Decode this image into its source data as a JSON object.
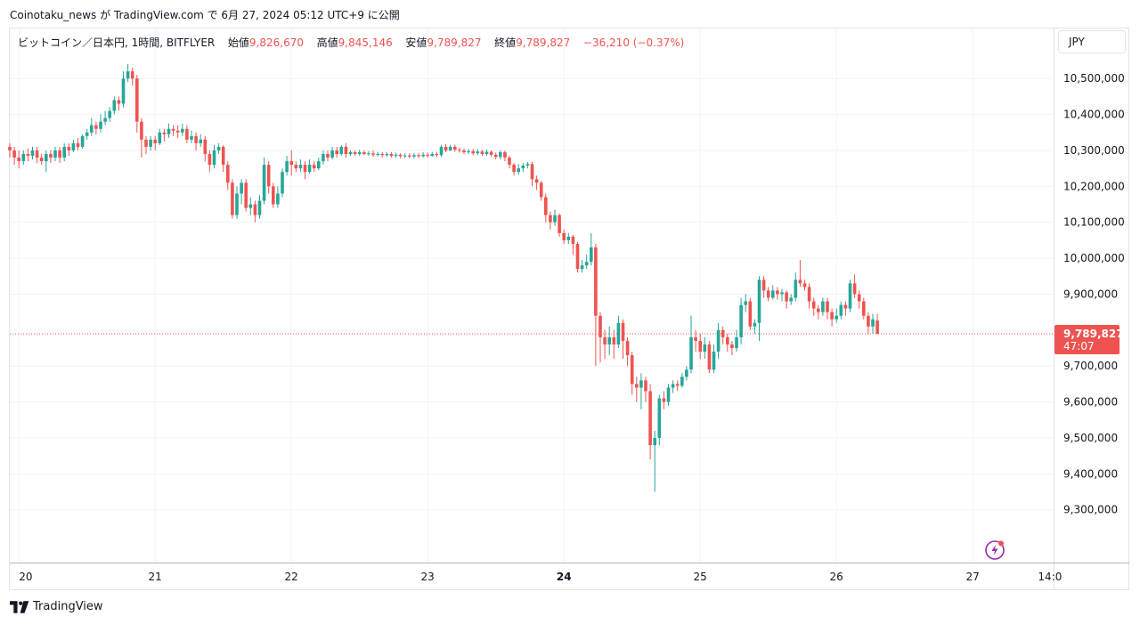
{
  "caption": "Coinotaku_news が TradingView.com で 6月 27, 2024 05:12 UTC+9 に公開",
  "legend": {
    "symbol": "ビットコイン／日本円, 1時間, BITFLYER",
    "open_label": "始値",
    "open": "9,826,670",
    "high_label": "高値",
    "high": "9,845,146",
    "low_label": "安値",
    "low": "9,789,827",
    "close_label": "終値",
    "close": "9,789,827",
    "change": "−36,210 (−0.37%)"
  },
  "currency_button": "JPY",
  "price_tag": {
    "price": "9,789,827",
    "countdown": "47:07"
  },
  "footer": {
    "brand": "TradingView"
  },
  "colors": {
    "up": "#26a69a",
    "down": "#ef5350",
    "grid": "#f0f3fa",
    "axis_text": "#131722"
  },
  "chart_data": {
    "type": "candlestick",
    "title": "ビットコイン／日本円, 1時間, BITFLYER",
    "ylim": [
      9220000,
      10560000
    ],
    "yticks": [
      {
        "v": 10500000,
        "label": "10,500,000"
      },
      {
        "v": 10400000,
        "label": "10,400,000"
      },
      {
        "v": 10300000,
        "label": "10,300,000"
      },
      {
        "v": 10200000,
        "label": "10,200,000"
      },
      {
        "v": 10100000,
        "label": "10,100,000"
      },
      {
        "v": 10000000,
        "label": "10,000,000"
      },
      {
        "v": 9900000,
        "label": "9,900,000"
      },
      {
        "v": 9800000,
        "label": "9,800,000"
      },
      {
        "v": 9700000,
        "label": "9,700,000"
      },
      {
        "v": 9600000,
        "label": "9,600,000"
      },
      {
        "v": 9500000,
        "label": "9,500,000"
      },
      {
        "v": 9400000,
        "label": "9,400,000"
      },
      {
        "v": 9300000,
        "label": "9,300,000"
      }
    ],
    "xticks": [
      {
        "i": 2,
        "label": "20",
        "bold": false
      },
      {
        "i": 32,
        "label": "21",
        "bold": false
      },
      {
        "i": 62,
        "label": "22",
        "bold": false
      },
      {
        "i": 92,
        "label": "23",
        "bold": false
      },
      {
        "i": 122,
        "label": "24",
        "bold": true
      },
      {
        "i": 152,
        "label": "25",
        "bold": false
      },
      {
        "i": 182,
        "label": "26",
        "bold": false
      },
      {
        "i": 212,
        "label": "27",
        "bold": false
      },
      {
        "i": 229,
        "label": "14:0",
        "bold": false
      }
    ],
    "last_price": 9789827,
    "candles": [
      [
        10310000,
        10300000,
        10320000,
        10280000
      ],
      [
        10300000,
        10280000,
        10310000,
        10260000
      ],
      [
        10280000,
        10270000,
        10300000,
        10250000
      ],
      [
        10270000,
        10290000,
        10300000,
        10260000
      ],
      [
        10290000,
        10285000,
        10305000,
        10270000
      ],
      [
        10285000,
        10300000,
        10310000,
        10275000
      ],
      [
        10300000,
        10280000,
        10310000,
        10265000
      ],
      [
        10280000,
        10270000,
        10290000,
        10260000
      ],
      [
        10270000,
        10290000,
        10300000,
        10240000
      ],
      [
        10290000,
        10280000,
        10300000,
        10265000
      ],
      [
        10280000,
        10300000,
        10310000,
        10270000
      ],
      [
        10300000,
        10280000,
        10310000,
        10265000
      ],
      [
        10280000,
        10310000,
        10320000,
        10270000
      ],
      [
        10310000,
        10300000,
        10320000,
        10285000
      ],
      [
        10300000,
        10320000,
        10330000,
        10295000
      ],
      [
        10320000,
        10310000,
        10335000,
        10300000
      ],
      [
        10310000,
        10340000,
        10345000,
        10305000
      ],
      [
        10340000,
        10350000,
        10360000,
        10330000
      ],
      [
        10350000,
        10370000,
        10390000,
        10340000
      ],
      [
        10370000,
        10360000,
        10380000,
        10345000
      ],
      [
        10360000,
        10380000,
        10400000,
        10350000
      ],
      [
        10380000,
        10390000,
        10410000,
        10370000
      ],
      [
        10390000,
        10410000,
        10420000,
        10380000
      ],
      [
        10410000,
        10440000,
        10450000,
        10400000
      ],
      [
        10440000,
        10430000,
        10450000,
        10410000
      ],
      [
        10430000,
        10500000,
        10520000,
        10420000
      ],
      [
        10500000,
        10520000,
        10540000,
        10490000
      ],
      [
        10520000,
        10500000,
        10530000,
        10480000
      ],
      [
        10500000,
        10380000,
        10510000,
        10350000
      ],
      [
        10380000,
        10330000,
        10390000,
        10280000
      ],
      [
        10330000,
        10310000,
        10340000,
        10290000
      ],
      [
        10310000,
        10330000,
        10340000,
        10300000
      ],
      [
        10330000,
        10320000,
        10340000,
        10300000
      ],
      [
        10320000,
        10350000,
        10360000,
        10315000
      ],
      [
        10350000,
        10345000,
        10360000,
        10325000
      ],
      [
        10345000,
        10360000,
        10375000,
        10335000
      ],
      [
        10360000,
        10355000,
        10370000,
        10340000
      ],
      [
        10355000,
        10350000,
        10370000,
        10335000
      ],
      [
        10350000,
        10360000,
        10375000,
        10340000
      ],
      [
        10360000,
        10330000,
        10370000,
        10320000
      ],
      [
        10330000,
        10340000,
        10355000,
        10320000
      ],
      [
        10340000,
        10320000,
        10350000,
        10300000
      ],
      [
        10320000,
        10330000,
        10345000,
        10310000
      ],
      [
        10330000,
        10290000,
        10340000,
        10270000
      ],
      [
        10290000,
        10260000,
        10300000,
        10240000
      ],
      [
        10260000,
        10300000,
        10315000,
        10250000
      ],
      [
        10300000,
        10310000,
        10320000,
        10290000
      ],
      [
        10310000,
        10260000,
        10315000,
        10240000
      ],
      [
        10260000,
        10210000,
        10270000,
        10190000
      ],
      [
        10210000,
        10120000,
        10220000,
        10110000
      ],
      [
        10120000,
        10180000,
        10200000,
        10110000
      ],
      [
        10180000,
        10210000,
        10220000,
        10150000
      ],
      [
        10210000,
        10140000,
        10220000,
        10130000
      ],
      [
        10140000,
        10150000,
        10170000,
        10120000
      ],
      [
        10150000,
        10120000,
        10160000,
        10100000
      ],
      [
        10120000,
        10160000,
        10175000,
        10110000
      ],
      [
        10160000,
        10260000,
        10280000,
        10150000
      ],
      [
        10260000,
        10200000,
        10270000,
        10180000
      ],
      [
        10200000,
        10150000,
        10210000,
        10140000
      ],
      [
        10150000,
        10180000,
        10200000,
        10140000
      ],
      [
        10180000,
        10240000,
        10250000,
        10170000
      ],
      [
        10240000,
        10270000,
        10285000,
        10230000
      ],
      [
        10270000,
        10260000,
        10300000,
        10230000
      ],
      [
        10260000,
        10250000,
        10270000,
        10240000
      ],
      [
        10250000,
        10260000,
        10275000,
        10240000
      ],
      [
        10260000,
        10240000,
        10270000,
        10220000
      ],
      [
        10240000,
        10260000,
        10275000,
        10235000
      ],
      [
        10260000,
        10250000,
        10270000,
        10240000
      ],
      [
        10250000,
        10270000,
        10280000,
        10245000
      ],
      [
        10270000,
        10290000,
        10300000,
        10260000
      ],
      [
        10290000,
        10280000,
        10300000,
        10270000
      ],
      [
        10280000,
        10300000,
        10310000,
        10275000
      ],
      [
        10300000,
        10290000,
        10310000,
        10280000
      ],
      [
        10290000,
        10310000,
        10315000,
        10285000
      ],
      [
        10310000,
        10290000,
        10320000,
        10280000
      ],
      [
        10290000,
        10295000,
        10300000,
        10285000
      ],
      [
        10295000,
        10290000,
        10300000,
        10285000
      ],
      [
        10290000,
        10295000,
        10302000,
        10285000
      ],
      [
        10295000,
        10290000,
        10300000,
        10286000
      ],
      [
        10290000,
        10292000,
        10298000,
        10285000
      ],
      [
        10292000,
        10288000,
        10300000,
        10282000
      ],
      [
        10288000,
        10290000,
        10296000,
        10283000
      ],
      [
        10290000,
        10287000,
        10295000,
        10280000
      ],
      [
        10287000,
        10290000,
        10296000,
        10282000
      ],
      [
        10290000,
        10285000,
        10295000,
        10280000
      ],
      [
        10285000,
        10288000,
        10294000,
        10280000
      ],
      [
        10288000,
        10284000,
        10292000,
        10278000
      ],
      [
        10284000,
        10286000,
        10292000,
        10279000
      ],
      [
        10286000,
        10283000,
        10292000,
        10278000
      ],
      [
        10283000,
        10287000,
        10293000,
        10278000
      ],
      [
        10287000,
        10284000,
        10293000,
        10279000
      ],
      [
        10284000,
        10288000,
        10295000,
        10280000
      ],
      [
        10288000,
        10285000,
        10294000,
        10280000
      ],
      [
        10285000,
        10290000,
        10296000,
        10282000
      ],
      [
        10290000,
        10287000,
        10296000,
        10282000
      ],
      [
        10287000,
        10310000,
        10315000,
        10282000
      ],
      [
        10310000,
        10300000,
        10318000,
        10295000
      ],
      [
        10300000,
        10310000,
        10316000,
        10298000
      ],
      [
        10310000,
        10302000,
        10316000,
        10296000
      ],
      [
        10302000,
        10300000,
        10308000,
        10294000
      ],
      [
        10300000,
        10295000,
        10305000,
        10290000
      ],
      [
        10295000,
        10298000,
        10304000,
        10290000
      ],
      [
        10298000,
        10292000,
        10304000,
        10286000
      ],
      [
        10292000,
        10297000,
        10303000,
        10287000
      ],
      [
        10297000,
        10290000,
        10302000,
        10285000
      ],
      [
        10290000,
        10296000,
        10302000,
        10285000
      ],
      [
        10296000,
        10288000,
        10300000,
        10282000
      ],
      [
        10288000,
        10282000,
        10294000,
        10275000
      ],
      [
        10282000,
        10295000,
        10300000,
        10275000
      ],
      [
        10295000,
        10280000,
        10300000,
        10270000
      ],
      [
        10280000,
        10260000,
        10285000,
        10250000
      ],
      [
        10260000,
        10240000,
        10265000,
        10230000
      ],
      [
        10240000,
        10250000,
        10262000,
        10232000
      ],
      [
        10250000,
        10258000,
        10265000,
        10240000
      ],
      [
        10258000,
        10262000,
        10268000,
        10250000
      ],
      [
        10262000,
        10220000,
        10268000,
        10200000
      ],
      [
        10220000,
        10210000,
        10230000,
        10190000
      ],
      [
        10210000,
        10170000,
        10215000,
        10160000
      ],
      [
        10170000,
        10120000,
        10180000,
        10100000
      ],
      [
        10120000,
        10100000,
        10130000,
        10080000
      ],
      [
        10100000,
        10120000,
        10135000,
        10090000
      ],
      [
        10120000,
        10070000,
        10125000,
        10060000
      ],
      [
        10070000,
        10050000,
        10080000,
        10040000
      ],
      [
        10050000,
        10060000,
        10070000,
        10040000
      ],
      [
        10060000,
        10040000,
        10065000,
        10010000
      ],
      [
        10040000,
        9970000,
        10045000,
        9960000
      ],
      [
        9970000,
        9980000,
        9995000,
        9960000
      ],
      [
        9980000,
        9990000,
        10010000,
        9970000
      ],
      [
        9990000,
        10030000,
        10070000,
        9980000
      ],
      [
        10030000,
        9840000,
        10040000,
        9700000
      ],
      [
        9840000,
        9780000,
        9850000,
        9710000
      ],
      [
        9780000,
        9760000,
        9800000,
        9720000
      ],
      [
        9760000,
        9780000,
        9810000,
        9730000
      ],
      [
        9780000,
        9760000,
        9800000,
        9720000
      ],
      [
        9760000,
        9820000,
        9840000,
        9750000
      ],
      [
        9820000,
        9770000,
        9830000,
        9720000
      ],
      [
        9770000,
        9730000,
        9780000,
        9700000
      ],
      [
        9730000,
        9650000,
        9740000,
        9620000
      ],
      [
        9650000,
        9640000,
        9670000,
        9600000
      ],
      [
        9640000,
        9660000,
        9680000,
        9580000
      ],
      [
        9660000,
        9630000,
        9670000,
        9600000
      ],
      [
        9630000,
        9480000,
        9650000,
        9440000
      ],
      [
        9480000,
        9500000,
        9520000,
        9350000
      ],
      [
        9500000,
        9610000,
        9620000,
        9480000
      ],
      [
        9610000,
        9600000,
        9630000,
        9580000
      ],
      [
        9600000,
        9640000,
        9650000,
        9590000
      ],
      [
        9640000,
        9650000,
        9660000,
        9625000
      ],
      [
        9650000,
        9645000,
        9660000,
        9630000
      ],
      [
        9645000,
        9670000,
        9680000,
        9640000
      ],
      [
        9670000,
        9690000,
        9700000,
        9660000
      ],
      [
        9690000,
        9780000,
        9840000,
        9680000
      ],
      [
        9780000,
        9770000,
        9800000,
        9740000
      ],
      [
        9770000,
        9740000,
        9790000,
        9720000
      ],
      [
        9740000,
        9760000,
        9780000,
        9720000
      ],
      [
        9760000,
        9690000,
        9770000,
        9680000
      ],
      [
        9690000,
        9740000,
        9760000,
        9680000
      ],
      [
        9740000,
        9800000,
        9820000,
        9720000
      ],
      [
        9800000,
        9780000,
        9810000,
        9760000
      ],
      [
        9780000,
        9760000,
        9790000,
        9740000
      ],
      [
        9760000,
        9750000,
        9770000,
        9730000
      ],
      [
        9750000,
        9780000,
        9800000,
        9740000
      ],
      [
        9780000,
        9870000,
        9890000,
        9760000
      ],
      [
        9870000,
        9880000,
        9900000,
        9850000
      ],
      [
        9880000,
        9810000,
        9890000,
        9800000
      ],
      [
        9810000,
        9820000,
        9830000,
        9790000
      ],
      [
        9820000,
        9940000,
        9950000,
        9770000
      ],
      [
        9940000,
        9910000,
        9950000,
        9890000
      ],
      [
        9910000,
        9890000,
        9920000,
        9880000
      ],
      [
        9890000,
        9910000,
        9925000,
        9885000
      ],
      [
        9910000,
        9900000,
        9920000,
        9885000
      ],
      [
        9900000,
        9905000,
        9915000,
        9880000
      ],
      [
        9905000,
        9880000,
        9910000,
        9860000
      ],
      [
        9880000,
        9890000,
        9900000,
        9870000
      ],
      [
        9890000,
        9940000,
        9960000,
        9880000
      ],
      [
        9940000,
        9930000,
        9995000,
        9920000
      ],
      [
        9930000,
        9920000,
        9940000,
        9910000
      ],
      [
        9920000,
        9880000,
        9930000,
        9860000
      ],
      [
        9880000,
        9860000,
        9890000,
        9840000
      ],
      [
        9860000,
        9850000,
        9870000,
        9830000
      ],
      [
        9850000,
        9880000,
        9890000,
        9840000
      ],
      [
        9880000,
        9850000,
        9890000,
        9830000
      ],
      [
        9850000,
        9830000,
        9860000,
        9810000
      ],
      [
        9830000,
        9840000,
        9860000,
        9820000
      ],
      [
        9840000,
        9870000,
        9880000,
        9830000
      ],
      [
        9870000,
        9860000,
        9880000,
        9840000
      ],
      [
        9860000,
        9930000,
        9940000,
        9850000
      ],
      [
        9930000,
        9900000,
        9955000,
        9890000
      ],
      [
        9900000,
        9880000,
        9910000,
        9860000
      ],
      [
        9880000,
        9840000,
        9890000,
        9830000
      ],
      [
        9840000,
        9810000,
        9850000,
        9790000
      ],
      [
        9810000,
        9830000,
        9845000,
        9790000
      ],
      [
        9826670,
        9789827,
        9845146,
        9789827
      ]
    ]
  }
}
